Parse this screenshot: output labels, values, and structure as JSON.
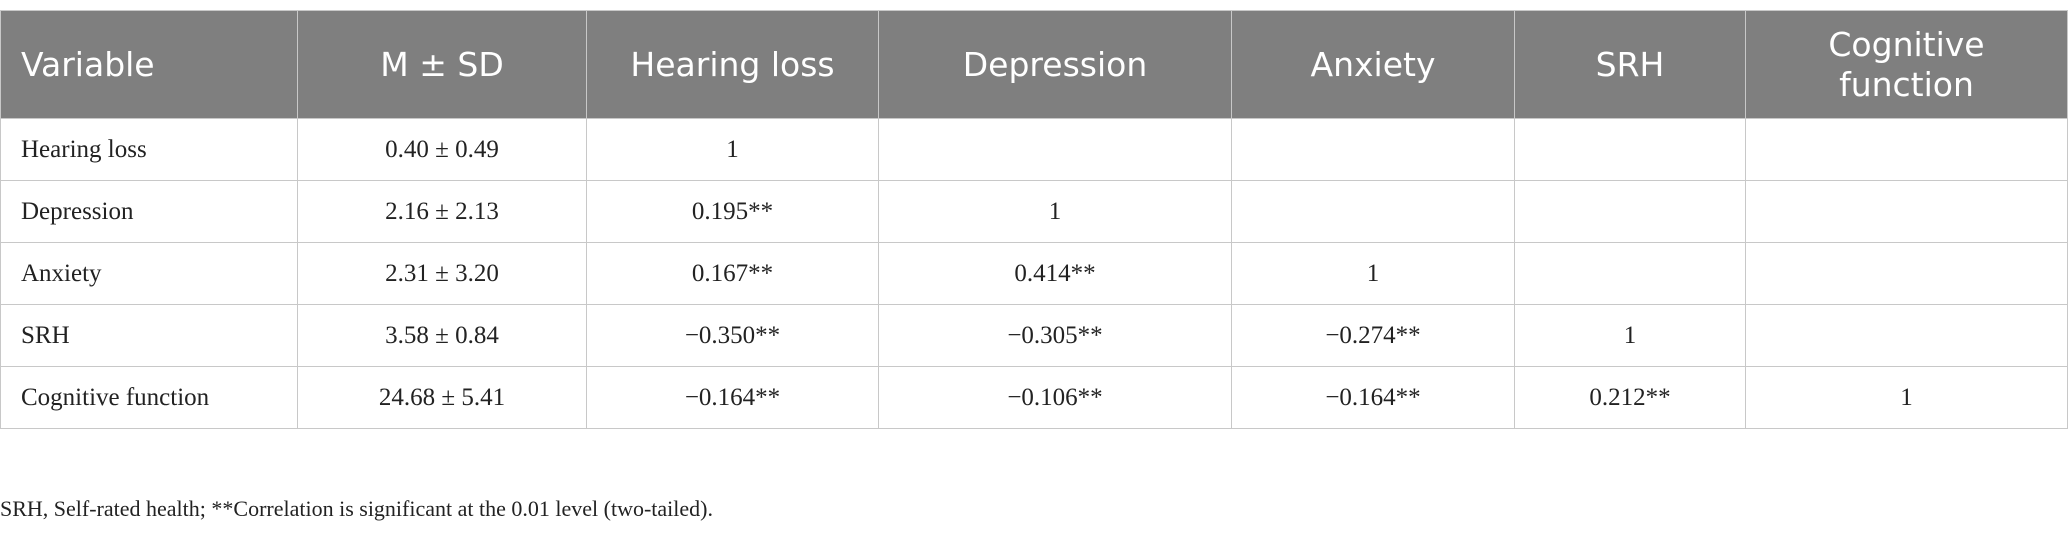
{
  "table": {
    "header": [
      "Variable",
      "M ± SD",
      "Hearing loss",
      "Depression",
      "Anxiety",
      "SRH",
      "Cognitive function"
    ],
    "rows": [
      [
        "Hearing loss",
        "0.40 ± 0.49",
        "1",
        null,
        null,
        null,
        null
      ],
      [
        "Depression",
        "2.16 ± 2.13",
        "0.195**",
        "1",
        null,
        null,
        null
      ],
      [
        "Anxiety",
        "2.31 ± 3.20",
        "0.167**",
        "0.414**",
        "1",
        null,
        null
      ],
      [
        "SRH",
        "3.58 ± 0.84",
        "−0.350**",
        "−0.305**",
        "−0.274**",
        "1",
        null
      ],
      [
        "Cognitive function",
        "24.68 ± 5.41",
        "−0.164**",
        "−0.106**",
        "−0.164**",
        "0.212**",
        "1"
      ]
    ]
  },
  "footnote": "SRH, Self-rated health; **Correlation is significant at the 0.01 level (two-tailed)."
}
